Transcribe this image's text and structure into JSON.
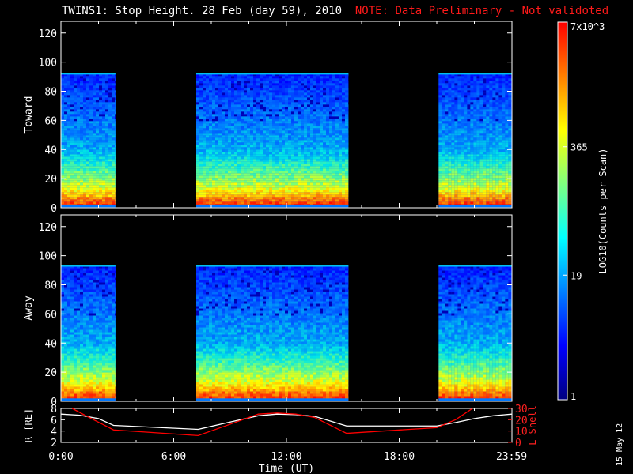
{
  "title": {
    "main": "TWINS1: Stop Height. 28 Feb (day  59), 2010",
    "note": "NOTE: Data Preliminary - Not validoted"
  },
  "date_stamp": "15 May 12",
  "colorbar": {
    "label": "LOG10(Counts per Scan)",
    "ticks": [
      "7x10^3",
      "365",
      "19",
      "1"
    ],
    "colors": [
      "#ff0000",
      "#ff7f00",
      "#ffff00",
      "#7fff7f",
      "#00ffff",
      "#007fff",
      "#0000ff",
      "#000080"
    ]
  },
  "chart_data": [
    {
      "type": "heatmap",
      "ylabel": "Toward",
      "xlabel": "",
      "xlim": [
        0,
        24
      ],
      "ylim": [
        0,
        128
      ],
      "yticks": [
        "0",
        "20",
        "40",
        "60",
        "80",
        "100",
        "120"
      ],
      "data_top": 92,
      "data_intervals_hours": [
        [
          0.0,
          2.9
        ],
        [
          7.2,
          15.3
        ],
        [
          20.1,
          24.0
        ]
      ]
    },
    {
      "type": "heatmap",
      "ylabel": "Away",
      "xlabel": "",
      "xlim": [
        0,
        24
      ],
      "ylim": [
        0,
        128
      ],
      "yticks": [
        "0",
        "20",
        "40",
        "60",
        "80",
        "100",
        "120"
      ],
      "data_top": 93,
      "data_intervals_hours": [
        [
          0.0,
          2.9
        ],
        [
          7.2,
          15.3
        ],
        [
          20.1,
          24.0
        ]
      ]
    },
    {
      "type": "line",
      "xlabel": "Time (UT)",
      "xticks": [
        "0:00",
        "6:00",
        "12:00",
        "18:00",
        "23:59"
      ],
      "xlim": [
        0,
        24
      ],
      "ylabel": "R [RE]",
      "ylim": [
        2,
        8
      ],
      "yticks": [
        "2",
        "4",
        "6",
        "8"
      ],
      "ylabel_right": "L Shell",
      "ylim_right": [
        0,
        30
      ],
      "yticks_right": [
        "0",
        "10",
        "20",
        "30"
      ],
      "series": [
        {
          "name": "R [RE]",
          "color": "#ffffff",
          "x": [
            0,
            1,
            2,
            2.8,
            7.3,
            9,
            10.5,
            11.5,
            12.5,
            13.5,
            15.2,
            20.0,
            21,
            22,
            23,
            24
          ],
          "y": [
            7.0,
            6.8,
            6.2,
            5.0,
            4.3,
            5.6,
            6.7,
            7.0,
            6.9,
            6.6,
            4.9,
            4.9,
            5.5,
            6.2,
            6.7,
            7.0
          ]
        },
        {
          "name": "L Shell",
          "color": "#ff0000",
          "x": [
            0.6,
            1.5,
            2.8,
            7.3,
            9,
            10.5,
            11.5,
            12.5,
            13.5,
            15.2,
            20.0,
            21,
            21.9
          ],
          "y": [
            30,
            22,
            11,
            6,
            16,
            25,
            26,
            25,
            22,
            8,
            13,
            20,
            30
          ]
        }
      ]
    }
  ]
}
